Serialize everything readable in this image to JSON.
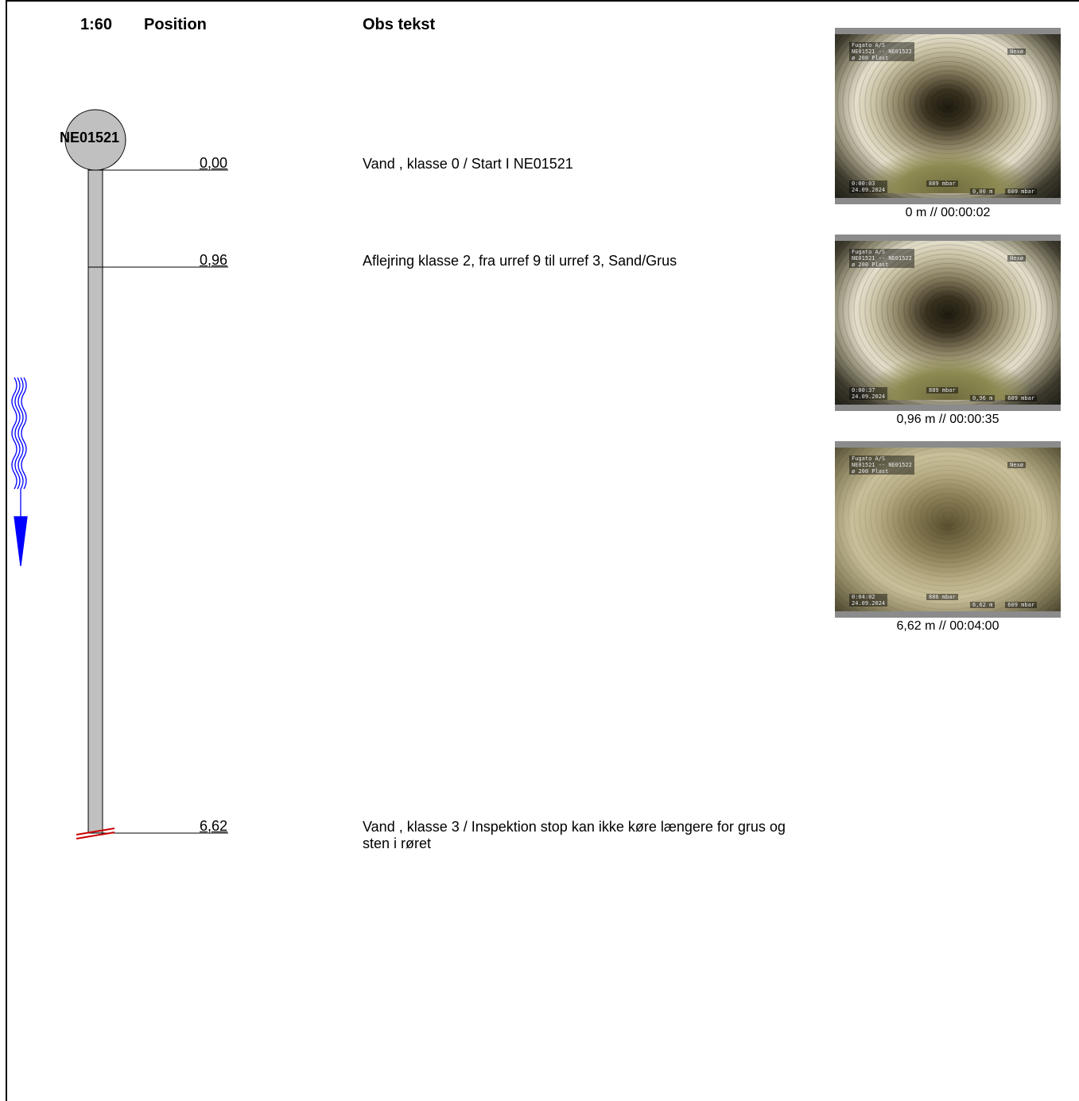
{
  "header": {
    "scale": "1:60",
    "position": "Position",
    "obs": "Obs tekst"
  },
  "node": {
    "name": "NE01521"
  },
  "observations": [
    {
      "position": "0,00",
      "text": "Vand , klasse 0 / Start I NE01521"
    },
    {
      "position": "0,96",
      "text": "Aflejring klasse 2, fra urref 9 til urref 3, Sand/Grus"
    },
    {
      "position": "6,62",
      "text": "Vand , klasse 3 / Inspektion stop kan ikke køre længere for grus og sten i røret"
    }
  ],
  "photos": [
    {
      "caption": "0 m // 00:00:02",
      "company": "Fugato A/S",
      "section": "NE01521 -- NE01522",
      "pipe": "ø 200 Plast",
      "town": "Nexø",
      "time": "0:00:03",
      "date": "24.09.2024",
      "pressure": "889 mbar",
      "dist": "0,00 m",
      "pressure2": "609 mbar"
    },
    {
      "caption": "0,96 m // 00:00:35",
      "company": "Fugato A/S",
      "section": "NE01521 -- NE01522",
      "pipe": "ø 200 Plast",
      "town": "Nexø",
      "time": "0:00:37",
      "date": "24.09.2024",
      "pressure": "889 mbar",
      "dist": "0,96 m",
      "pressure2": "609 mbar"
    },
    {
      "caption": "6,62 m // 00:04:00",
      "company": "Fugato A/S",
      "section": "NE01521 -- NE01522",
      "pipe": "ø 200 Plast",
      "town": "Nexø",
      "time": "0:04:02",
      "date": "24.09.2024",
      "pressure": "886 mbar",
      "dist": "6,62 m",
      "pressure2": "609 mbar"
    }
  ],
  "colors": {
    "pipe": "#c0c0c0",
    "flow_arrow": "#0000ff",
    "stop_mark": "#cc0000"
  }
}
